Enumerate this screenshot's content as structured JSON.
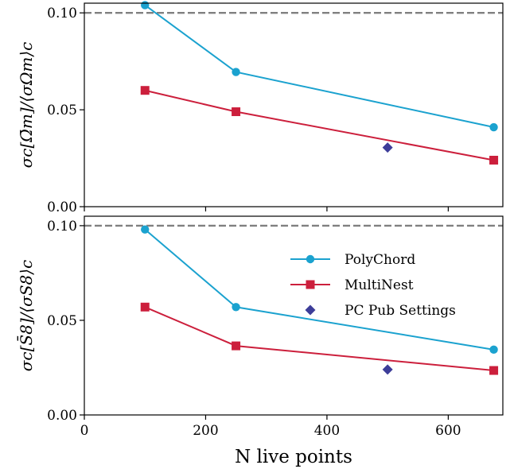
{
  "chart_data": [
    {
      "type": "line",
      "ylabel": "σc[Ω̄m]/⟨σΩm⟩c",
      "xlim": [
        0,
        690
      ],
      "ylim": [
        0,
        0.105
      ],
      "yticks": [
        "0.00",
        "0.05",
        "0.10"
      ],
      "reference_line": {
        "y": 0.1,
        "style": "dashed",
        "color": "#808080"
      },
      "series": [
        {
          "name": "PolyChord",
          "color": "#1ba2cf",
          "marker": "circle",
          "x": [
            100,
            250,
            675
          ],
          "y": [
            0.104,
            0.0695,
            0.041
          ]
        },
        {
          "name": "MultiNest",
          "color": "#cc1f3c",
          "marker": "square",
          "x": [
            100,
            250,
            675
          ],
          "y": [
            0.06,
            0.049,
            0.024
          ]
        },
        {
          "name": "PC Pub Settings",
          "color": "#3d3d99",
          "marker": "diamond",
          "x": [
            500
          ],
          "y": [
            0.0305
          ]
        }
      ]
    },
    {
      "type": "line",
      "ylabel": "σc[S̄8]/⟨σS8⟩c",
      "xlabel": "N live points",
      "xlim": [
        0,
        690
      ],
      "ylim": [
        0,
        0.105
      ],
      "xticks": [
        "0",
        "200",
        "400",
        "600"
      ],
      "yticks": [
        "0.00",
        "0.05",
        "0.10"
      ],
      "reference_line": {
        "y": 0.1,
        "style": "dashed",
        "color": "#808080"
      },
      "legend": {
        "placement": "upper-right",
        "entries": [
          "PolyChord",
          "MultiNest",
          "PC Pub Settings"
        ]
      },
      "series": [
        {
          "name": "PolyChord",
          "color": "#1ba2cf",
          "marker": "circle",
          "x": [
            100,
            250,
            675
          ],
          "y": [
            0.098,
            0.057,
            0.0345
          ]
        },
        {
          "name": "MultiNest",
          "color": "#cc1f3c",
          "marker": "square",
          "x": [
            100,
            250,
            675
          ],
          "y": [
            0.057,
            0.0365,
            0.0235
          ]
        },
        {
          "name": "PC Pub Settings",
          "color": "#3d3d99",
          "marker": "diamond",
          "x": [
            500
          ],
          "y": [
            0.024
          ]
        }
      ]
    }
  ]
}
